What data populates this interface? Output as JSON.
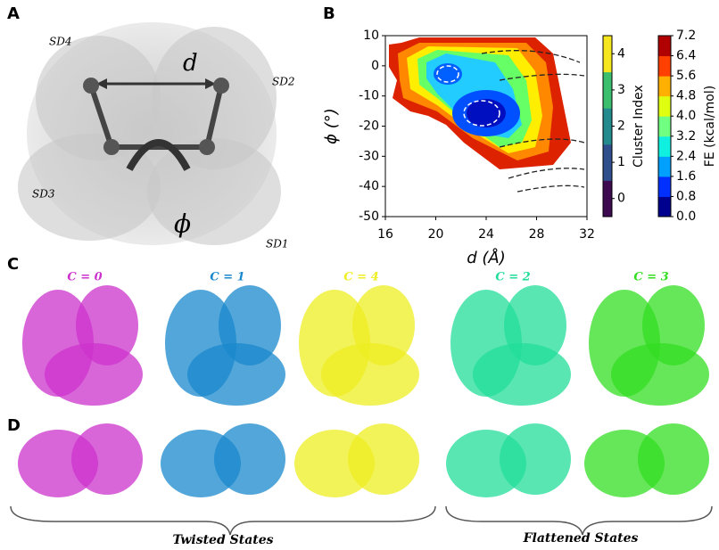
{
  "panel_a": {
    "label": "A",
    "distance": "d",
    "angle": "ϕ",
    "subdomains": [
      "SD4",
      "SD2",
      "SD3",
      "SD1"
    ]
  },
  "chart_data": {
    "type": "contour",
    "label": "B",
    "xlabel": "d (Å)",
    "ylabel": "ϕ (°)",
    "xlim": [
      16,
      32
    ],
    "ylim": [
      -50,
      10
    ],
    "xticks": [
      16,
      20,
      24,
      28,
      32
    ],
    "yticks": [
      10,
      0,
      -10,
      -20,
      -30,
      -40,
      -50
    ],
    "colorbars": [
      {
        "label": "Cluster Index",
        "lim": [
          -0.5,
          4.5
        ],
        "ticks": [
          0,
          1,
          2,
          3,
          4
        ],
        "colors": [
          "#3d0a4f",
          "#2e4f8c",
          "#238a8d",
          "#3bbf6e",
          "#f5e61f"
        ]
      },
      {
        "label": "FE (kcal/mol)",
        "lim": [
          0,
          7.2
        ],
        "ticks": [
          {
            "value": 0,
            "label": "0.0"
          },
          0.8,
          1.6,
          2.4,
          3.2,
          {
            "value": 4,
            "label": "4.0"
          },
          4.8,
          5.6,
          6.4,
          7.2
        ],
        "colors": [
          "#00008f",
          "#0030ff",
          "#00a0ff",
          "#10f0e0",
          "#70ff80",
          "#e0ff10",
          "#ffb000",
          "#ff4000",
          "#b00000"
        ]
      }
    ]
  },
  "panel_c": {
    "label": "C",
    "states": [
      {
        "name": "C = 0",
        "color": "#cc33cc"
      },
      {
        "name": "C = 1",
        "color": "#1a88cc"
      },
      {
        "name": "C = 4",
        "color": "#eeee22"
      },
      {
        "name": "C = 2",
        "color": "#22dd99"
      },
      {
        "name": "C = 3",
        "color": "#33dd22"
      }
    ]
  },
  "panel_d": {
    "label": "D",
    "groups": [
      "Twisted States",
      "Flattened States"
    ]
  }
}
